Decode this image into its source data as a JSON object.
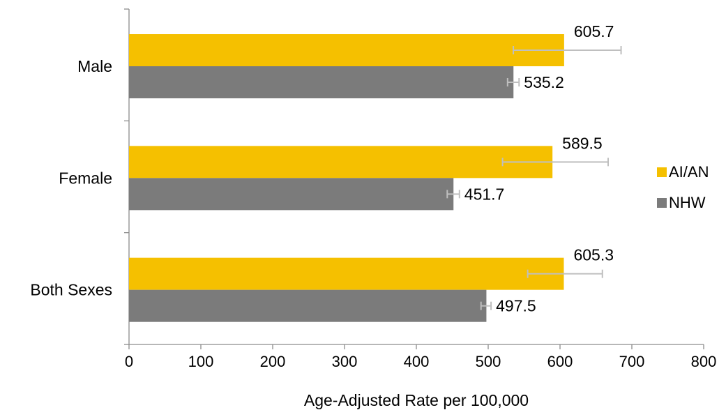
{
  "chart_data": {
    "type": "bar",
    "orientation": "horizontal",
    "categories": [
      "Male",
      "Female",
      "Both Sexes"
    ],
    "series": [
      {
        "name": "AI/AN",
        "color": "#F5C000",
        "values": [
          605.7,
          589.5,
          605.3
        ],
        "labels": [
          "605.7",
          "589.5",
          "605.3"
        ],
        "error_low": [
          535,
          520,
          555
        ],
        "error_high": [
          685,
          667,
          659
        ]
      },
      {
        "name": "NHW",
        "color": "#7B7B7B",
        "values": [
          535.2,
          451.7,
          497.5
        ],
        "labels": [
          "535.2",
          "451.7",
          "497.5"
        ],
        "error_low": [
          527,
          443,
          490
        ],
        "error_high": [
          543,
          460,
          504
        ]
      }
    ],
    "error_bar_color": "#BFBFBF",
    "xlabel": "Age-Adjusted Rate per 100,000",
    "ylabel": "",
    "title": "",
    "xlim": [
      0,
      800
    ],
    "x_ticks": [
      0,
      100,
      200,
      300,
      400,
      500,
      600,
      700,
      800
    ],
    "grid": false,
    "legend_position": "right"
  }
}
